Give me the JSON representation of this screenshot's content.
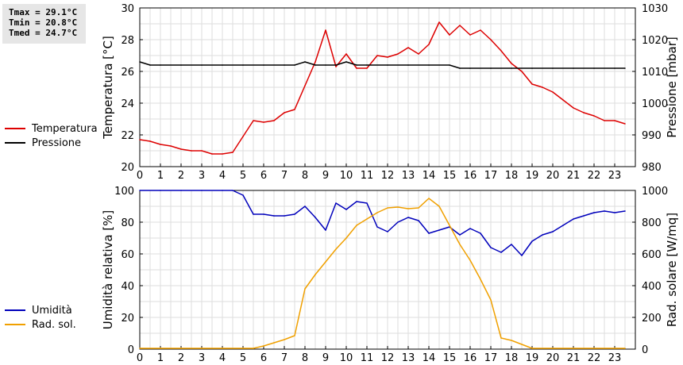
{
  "stats": {
    "tmax": "Tmax = 29.1°C",
    "tmin": "Tmin = 20.8°C",
    "tmed": "Tmed = 24.7°C"
  },
  "colors": {
    "temperature": "#dd0000",
    "pressure": "#000000",
    "humidity": "#0000bb",
    "radiation": "#f0a000",
    "grid": "#dddddd"
  },
  "chart_data": [
    {
      "type": "line",
      "x_ticks": [
        "0",
        "1",
        "2",
        "3",
        "4",
        "5",
        "6",
        "7",
        "8",
        "9",
        "10",
        "11",
        "12",
        "13",
        "14",
        "15",
        "16",
        "17",
        "18",
        "19",
        "20",
        "21",
        "22",
        "23"
      ],
      "xlim": [
        0,
        24
      ],
      "y_left": {
        "label": "Temperatura [°C]",
        "ylim": [
          20,
          30
        ],
        "ticks": [
          "20",
          "22",
          "24",
          "26",
          "28",
          "30"
        ]
      },
      "y_right": {
        "label": "Pressione [mbar]",
        "ylim": [
          980,
          1030
        ],
        "ticks": [
          "980",
          "990",
          "1000",
          "1010",
          "1020",
          "1030"
        ]
      },
      "grid": true,
      "legend": {
        "placement": "left"
      },
      "series": [
        {
          "name": "Temperatura",
          "axis": "left",
          "x": [
            0,
            0.5,
            1,
            1.5,
            2,
            2.5,
            3,
            3.5,
            4,
            4.5,
            5,
            5.5,
            6,
            6.5,
            7,
            7.5,
            8,
            8.5,
            9,
            9.5,
            10,
            10.5,
            11,
            11.5,
            12,
            12.5,
            13,
            13.5,
            14,
            14.5,
            15,
            15.5,
            16,
            16.5,
            17,
            17.5,
            18,
            18.5,
            19,
            19.5,
            20,
            20.5,
            21,
            21.5,
            22,
            22.5,
            23,
            23.5
          ],
          "y": [
            21.7,
            21.6,
            21.4,
            21.3,
            21.1,
            21.0,
            21.0,
            20.8,
            20.8,
            20.9,
            21.9,
            22.9,
            22.8,
            22.9,
            23.4,
            23.6,
            25.1,
            26.6,
            28.6,
            26.3,
            27.1,
            26.2,
            26.2,
            27.0,
            26.9,
            27.1,
            27.5,
            27.1,
            27.7,
            29.1,
            28.3,
            28.9,
            28.3,
            28.6,
            28.0,
            27.3,
            26.5,
            26.0,
            25.2,
            25.0,
            24.7,
            24.2,
            23.7,
            23.4,
            23.2,
            22.9,
            22.9,
            22.7
          ]
        },
        {
          "name": "Pressione",
          "axis": "right",
          "x": [
            0,
            0.5,
            1,
            2,
            3,
            4,
            5,
            6,
            7,
            7.5,
            8,
            8.5,
            9,
            9.5,
            10,
            10.5,
            11,
            12,
            13,
            14,
            15,
            15.5,
            16,
            17,
            18,
            19,
            20,
            21,
            22,
            23,
            23.5
          ],
          "y": [
            1013,
            1012,
            1012,
            1012,
            1012,
            1012,
            1012,
            1012,
            1012,
            1012,
            1013,
            1012,
            1012,
            1012,
            1013,
            1012,
            1012,
            1012,
            1012,
            1012,
            1012,
            1011,
            1011,
            1011,
            1011,
            1011,
            1011,
            1011,
            1011,
            1011,
            1011
          ]
        }
      ]
    },
    {
      "type": "line",
      "x_ticks": [
        "0",
        "1",
        "2",
        "3",
        "4",
        "5",
        "6",
        "7",
        "8",
        "9",
        "10",
        "11",
        "12",
        "13",
        "14",
        "15",
        "16",
        "17",
        "18",
        "19",
        "20",
        "21",
        "22",
        "23"
      ],
      "xlim": [
        0,
        24
      ],
      "y_left": {
        "label": "Umidità relativa [%]",
        "ylim": [
          0,
          100
        ],
        "ticks": [
          "0",
          "20",
          "40",
          "60",
          "80",
          "100"
        ]
      },
      "y_right": {
        "label": "Rad. solare [W/mq]",
        "ylim": [
          0,
          1000
        ],
        "ticks": [
          "0",
          "200",
          "400",
          "600",
          "800",
          "1000"
        ]
      },
      "grid": true,
      "legend": {
        "placement": "left"
      },
      "series": [
        {
          "name": "Umidità",
          "axis": "left",
          "x": [
            0,
            1,
            2,
            3,
            4,
            4.5,
            5,
            5.5,
            6,
            6.5,
            7,
            7.5,
            8,
            8.5,
            9,
            9.5,
            10,
            10.5,
            11,
            11.5,
            12,
            12.5,
            13,
            13.5,
            14,
            14.5,
            15,
            15.5,
            16,
            16.5,
            17,
            17.5,
            18,
            18.5,
            19,
            19.5,
            20,
            20.5,
            21,
            21.5,
            22,
            22.5,
            23,
            23.5
          ],
          "y": [
            100,
            100,
            100,
            100,
            100,
            100,
            97,
            85,
            85,
            84,
            84,
            85,
            90,
            83,
            75,
            92,
            88,
            93,
            92,
            77,
            74,
            80,
            83,
            81,
            73,
            75,
            77,
            72,
            76,
            73,
            64,
            61,
            66,
            59,
            68,
            72,
            74,
            78,
            82,
            84,
            86,
            87,
            86,
            87
          ]
        },
        {
          "name": "Rad. sol.",
          "axis": "right",
          "x": [
            0,
            1,
            2,
            3,
            4,
            5,
            5.5,
            6,
            6.5,
            7,
            7.5,
            8,
            8.5,
            9,
            9.5,
            10,
            10.5,
            11,
            11.5,
            12,
            12.5,
            13,
            13.5,
            14,
            14.5,
            15,
            15.5,
            16,
            16.5,
            17,
            17.5,
            18,
            18.5,
            19,
            20,
            21,
            22,
            23,
            23.5
          ],
          "y": [
            5,
            5,
            5,
            5,
            5,
            5,
            5,
            20,
            40,
            60,
            85,
            380,
            470,
            550,
            630,
            700,
            780,
            820,
            860,
            890,
            895,
            885,
            890,
            950,
            900,
            780,
            660,
            560,
            440,
            310,
            70,
            55,
            30,
            5,
            5,
            5,
            5,
            5,
            5
          ]
        }
      ]
    }
  ],
  "legend1": [
    {
      "label": "Temperatura"
    },
    {
      "label": "Pressione"
    }
  ],
  "legend2": [
    {
      "label": "Umidità"
    },
    {
      "label": "Rad. sol."
    }
  ]
}
